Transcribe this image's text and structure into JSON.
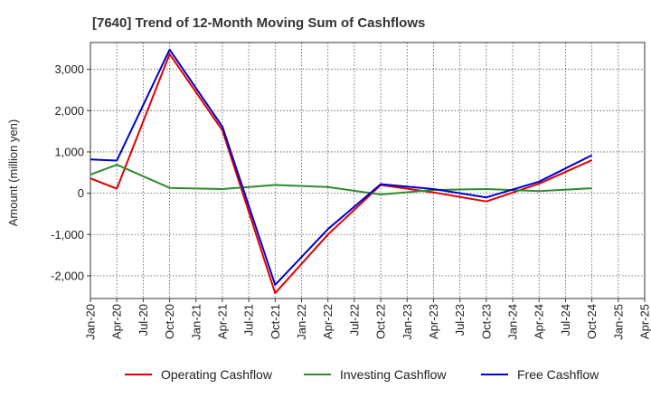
{
  "chart_data": {
    "type": "line",
    "title": "[7640]  Trend of 12-Month Moving Sum of Cashflows",
    "ylabel": "Amount (million yen)",
    "xlabel": "",
    "categories": [
      "Jan-20",
      "Apr-20",
      "Jul-20",
      "Oct-20",
      "Jan-21",
      "Apr-21",
      "Jul-21",
      "Oct-21",
      "Jan-22",
      "Apr-22",
      "Jul-22",
      "Oct-22",
      "Jan-23",
      "Apr-23",
      "Jul-23",
      "Oct-23",
      "Jan-24",
      "Apr-24",
      "Jul-24",
      "Oct-24",
      "Jan-25",
      "Apr-25"
    ],
    "y_ticks": [
      -2000,
      -1000,
      0,
      1000,
      2000,
      3000
    ],
    "y_tick_labels": [
      "-2,000",
      "-1,000",
      "0",
      "1,000",
      "2,000",
      "3,000"
    ],
    "ylim": [
      -2550,
      3650
    ],
    "grid": true,
    "legend_position": "bottom",
    "series": [
      {
        "name": "Operating Cashflow",
        "color": "#e00000",
        "values": [
          360,
          110,
          null,
          3370,
          null,
          1520,
          null,
          -2420,
          null,
          -1000,
          null,
          200,
          null,
          20,
          null,
          -200,
          null,
          230,
          null,
          800,
          null,
          null
        ]
      },
      {
        "name": "Investing Cashflow",
        "color": "#2e8b2e",
        "values": [
          450,
          690,
          null,
          130,
          null,
          100,
          null,
          200,
          null,
          150,
          null,
          -30,
          null,
          80,
          null,
          100,
          null,
          50,
          null,
          120,
          null,
          null
        ]
      },
      {
        "name": "Free Cashflow",
        "color": "#0000cc",
        "values": [
          820,
          790,
          null,
          3480,
          null,
          1610,
          null,
          -2220,
          null,
          -870,
          null,
          220,
          null,
          100,
          null,
          -100,
          null,
          280,
          null,
          920,
          null,
          null
        ]
      }
    ]
  }
}
